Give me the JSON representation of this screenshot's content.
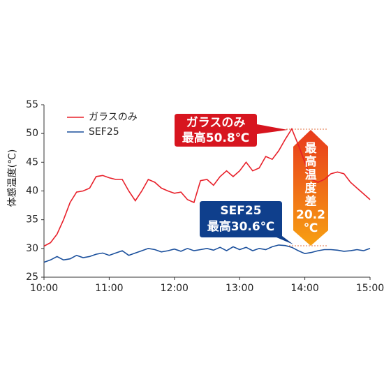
{
  "chart_data": {
    "type": "line",
    "y_label": "体感温度(℃)",
    "x": [
      10,
      10.1,
      10.2,
      10.3,
      10.4,
      10.5,
      10.6,
      10.7,
      10.8,
      10.9,
      11,
      11.1,
      11.2,
      11.3,
      11.4,
      11.5,
      11.6,
      11.7,
      11.8,
      11.9,
      12,
      12.1,
      12.2,
      12.3,
      12.4,
      12.5,
      12.6,
      12.7,
      12.8,
      12.9,
      13,
      13.1,
      13.2,
      13.3,
      13.4,
      13.5,
      13.6,
      13.7,
      13.8,
      13.9,
      14,
      14.1,
      14.2,
      14.3,
      14.4,
      14.5,
      14.6,
      14.7,
      14.8,
      14.9,
      15
    ],
    "xlim": [
      10,
      15
    ],
    "xticks": [
      {
        "value": 10,
        "label": "10:00"
      },
      {
        "value": 11,
        "label": "11:00"
      },
      {
        "value": 12,
        "label": "12:00"
      },
      {
        "value": 13,
        "label": "13:00"
      },
      {
        "value": 14,
        "label": "14:00"
      },
      {
        "value": 15,
        "label": "15:00"
      }
    ],
    "ylim": [
      25,
      55
    ],
    "yticks": [
      25,
      30,
      35,
      40,
      45,
      50,
      55
    ],
    "legend": "top-left",
    "series": [
      {
        "name": "ガラスのみ",
        "color": "#e8202a",
        "values": [
          30.4,
          31,
          32.5,
          35,
          38,
          39.8,
          40,
          40.5,
          42.5,
          42.7,
          42.3,
          42,
          42,
          40,
          38.3,
          40,
          42,
          41.5,
          40.5,
          40,
          39.6,
          39.8,
          38.5,
          38,
          41.8,
          42,
          41,
          42.5,
          43.5,
          42.5,
          43.5,
          45,
          43.5,
          44,
          46,
          45.5,
          47,
          49,
          50.8,
          48,
          45,
          42,
          41.5,
          42,
          43,
          43.3,
          43,
          41.5,
          40.5,
          39.5,
          38.5
        ]
      },
      {
        "name": "SEF25",
        "color": "#1a4f9c",
        "values": [
          27.6,
          28,
          28.6,
          28,
          28.2,
          28.8,
          28.4,
          28.6,
          29,
          29.2,
          28.8,
          29.2,
          29.6,
          28.8,
          29.2,
          29.6,
          30,
          29.8,
          29.4,
          29.6,
          29.9,
          29.5,
          30,
          29.6,
          29.8,
          30,
          29.7,
          30.2,
          29.6,
          30.3,
          29.8,
          30.2,
          29.6,
          30,
          29.8,
          30.3,
          30.6,
          30.5,
          30.2,
          29.6,
          29.1,
          29.3,
          29.6,
          29.8,
          29.8,
          29.7,
          29.5,
          29.6,
          29.8,
          29.6,
          30
        ]
      }
    ],
    "annotations": [
      {
        "lines": [
          "ガラスのみ",
          "最高50.8℃"
        ],
        "color": "#d7151f"
      },
      {
        "lines": [
          "SEF25",
          "最高30.6℃"
        ],
        "color": "#0f3f8c"
      },
      {
        "lines": [
          "最",
          "高",
          "温",
          "度",
          "差",
          "20.2",
          "℃"
        ]
      }
    ]
  }
}
